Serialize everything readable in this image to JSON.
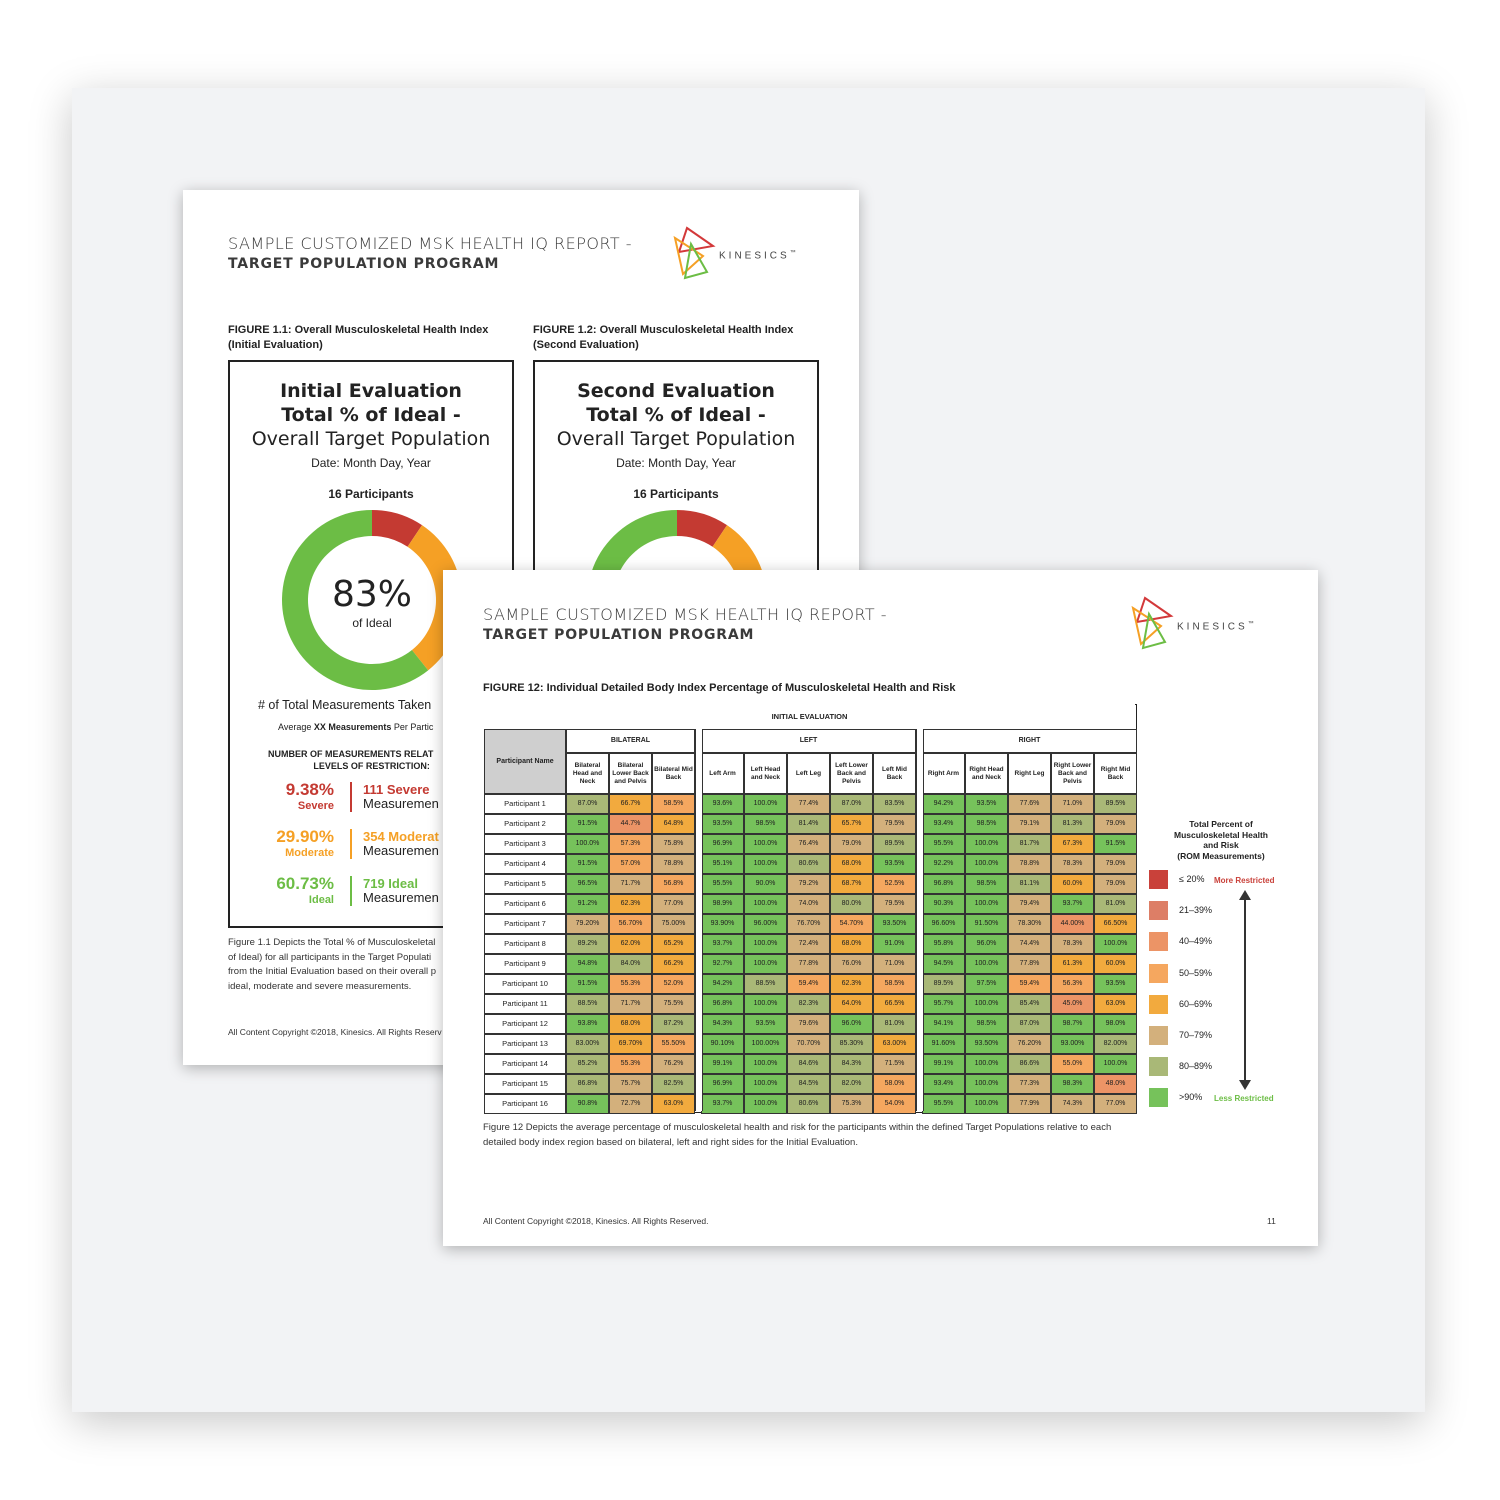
{
  "page1": {
    "header_line1": "SAMPLE CUSTOMIZED MSK HEALTH IQ REPORT -",
    "header_line2": "TARGET POPULATION PROGRAM",
    "logo_text": "KINESICS",
    "logo_tm": "™",
    "fig1_caption_1": "FIGURE 1.1: Overall Musculoskeletal Health Index",
    "fig1_caption_2": "(Initial Evaluation)",
    "fig2_caption_1": "FIGURE 1.2: Overall Musculoskeletal Health Index",
    "fig2_caption_2": "(Second Evaluation)",
    "box1": {
      "title1": "Initial Evaluation",
      "title2": "Total % of Ideal -",
      "title3": "Overall Target Population",
      "date": "Date: Month Day, Year",
      "participants": "16 Participants",
      "donut_value": "83%",
      "donut_label": "of Ideal",
      "donut_segments": {
        "severe": 9.38,
        "moderate": 29.9,
        "ideal": 60.73
      },
      "measurements_title": "# of Total Measurements Taken",
      "avg_prefix": "Average ",
      "avg_bold": "XX Measurements",
      "avg_suffix": " Per Partic",
      "levels_title_1": "NUMBER OF MEASUREMENTS RELAT",
      "levels_title_2": "LEVELS OF RESTRICTION:",
      "stats": [
        {
          "pct": "9.38%",
          "label": "Severe",
          "count": "111 Severe",
          "meas": "Measuremen",
          "color": "#c43a32"
        },
        {
          "pct": "29.90%",
          "label": "Moderate",
          "count": "354 Moderat",
          "meas": "Measuremen",
          "color": "#f5a025"
        },
        {
          "pct": "60.73%",
          "label": "Ideal",
          "count": "719 Ideal",
          "meas": "Measuremen",
          "color": "#6cbd45"
        }
      ]
    },
    "box2": {
      "title1": "Second Evaluation",
      "title2": "Total % of Ideal -",
      "title3": "Overall Target Population",
      "date": "Date: Month Day, Year",
      "participants": "16 Participants"
    },
    "note_1": "Figure 1.1 Depicts the Total % of Musculoskeletal",
    "note_2": "of Ideal) for all participants in the Target Populati",
    "note_3": "from the Initial Evaluation based on their overall p",
    "note_4": "ideal, moderate and severe measurements.",
    "copyright": "All Content Copyright ©2018, Kinesics. All Rights Reserv"
  },
  "page2": {
    "header_line1": "SAMPLE CUSTOMIZED MSK HEALTH IQ REPORT -",
    "header_line2": "TARGET POPULATION PROGRAM",
    "logo_text": "KINESICS",
    "logo_tm": "™",
    "figure_title": "FIGURE 12: Individual Detailed Body Index Percentage of Musculoskeletal Health and Risk",
    "table_title": "INITIAL EVALUATION",
    "participant_header": "Participant Name",
    "groups": [
      "BILATERAL",
      "LEFT",
      "RIGHT"
    ],
    "columns": [
      [
        "Bilateral Head and Neck",
        "Bilateral Lower Back and Pelvis",
        "Bilateral Mid Back"
      ],
      [
        "Left Arm",
        "Left Head and Neck",
        "Left Leg",
        "Left Lower Back and Pelvis",
        "Left Mid Back"
      ],
      [
        "Right Arm",
        "Right Head and Neck",
        "Right Leg",
        "Right Lower Back and Pelvis",
        "Right Mid Back"
      ]
    ],
    "rows": [
      {
        "name": "Participant 1",
        "values": [
          "87.0%",
          "66.7%",
          "58.5%",
          "93.6%",
          "100.0%",
          "77.4%",
          "87.0%",
          "83.5%",
          "94.2%",
          "93.5%",
          "77.6%",
          "71.0%",
          "89.5%"
        ]
      },
      {
        "name": "Participant 2",
        "values": [
          "91.5%",
          "44.7%",
          "64.8%",
          "93.5%",
          "98.5%",
          "81.4%",
          "65.7%",
          "79.5%",
          "93.4%",
          "98.5%",
          "79.1%",
          "81.3%",
          "79.0%"
        ]
      },
      {
        "name": "Participant 3",
        "values": [
          "100.0%",
          "57.3%",
          "75.8%",
          "96.9%",
          "100.0%",
          "76.4%",
          "79.0%",
          "89.5%",
          "95.5%",
          "100.0%",
          "81.7%",
          "67.3%",
          "91.5%"
        ]
      },
      {
        "name": "Participant 4",
        "values": [
          "91.5%",
          "57.0%",
          "78.8%",
          "95.1%",
          "100.0%",
          "80.6%",
          "68.0%",
          "93.5%",
          "92.2%",
          "100.0%",
          "78.8%",
          "78.3%",
          "79.0%"
        ]
      },
      {
        "name": "Participant 5",
        "values": [
          "96.5%",
          "71.7%",
          "56.8%",
          "95.5%",
          "90.0%",
          "79.2%",
          "68.7%",
          "52.5%",
          "96.8%",
          "98.5%",
          "81.1%",
          "60.0%",
          "79.0%"
        ]
      },
      {
        "name": "Participant 6",
        "values": [
          "91.2%",
          "62.3%",
          "77.0%",
          "98.9%",
          "100.0%",
          "74.0%",
          "80.0%",
          "79.5%",
          "90.3%",
          "100.0%",
          "79.4%",
          "93.7%",
          "81.0%"
        ]
      },
      {
        "name": "Participant 7",
        "values": [
          "79.20%",
          "56.70%",
          "75.00%",
          "93.90%",
          "96.00%",
          "76.70%",
          "54.70%",
          "93.50%",
          "96.60%",
          "91.50%",
          "78.30%",
          "44.00%",
          "66.50%"
        ]
      },
      {
        "name": "Participant 8",
        "values": [
          "89.2%",
          "62.0%",
          "65.2%",
          "93.7%",
          "100.0%",
          "72.4%",
          "68.0%",
          "91.0%",
          "95.8%",
          "96.0%",
          "74.4%",
          "78.3%",
          "100.0%"
        ]
      },
      {
        "name": "Participant 9",
        "values": [
          "94.8%",
          "84.0%",
          "66.2%",
          "92.7%",
          "100.0%",
          "77.8%",
          "76.0%",
          "71.0%",
          "94.5%",
          "100.0%",
          "77.8%",
          "61.3%",
          "60.0%"
        ]
      },
      {
        "name": "Participant 10",
        "values": [
          "91.5%",
          "55.3%",
          "52.0%",
          "94.2%",
          "88.5%",
          "59.4%",
          "62.3%",
          "58.5%",
          "89.5%",
          "97.5%",
          "59.4%",
          "56.3%",
          "93.5%"
        ]
      },
      {
        "name": "Participant 11",
        "values": [
          "88.5%",
          "71.7%",
          "75.5%",
          "96.8%",
          "100.0%",
          "82.3%",
          "64.0%",
          "66.5%",
          "95.7%",
          "100.0%",
          "85.4%",
          "45.0%",
          "63.0%"
        ]
      },
      {
        "name": "Participant 12",
        "values": [
          "93.8%",
          "68.0%",
          "87.2%",
          "94.3%",
          "93.5%",
          "79.6%",
          "96.0%",
          "81.0%",
          "94.1%",
          "98.5%",
          "87.0%",
          "98.7%",
          "98.0%"
        ]
      },
      {
        "name": "Participant 13",
        "values": [
          "83.00%",
          "69.70%",
          "55.50%",
          "90.10%",
          "100.00%",
          "70.70%",
          "85.30%",
          "63.00%",
          "91.60%",
          "93.50%",
          "76.20%",
          "93.00%",
          "82.00%"
        ]
      },
      {
        "name": "Participant 14",
        "values": [
          "85.2%",
          "55.3%",
          "76.2%",
          "99.1%",
          "100.0%",
          "84.6%",
          "84.3%",
          "71.5%",
          "99.1%",
          "100.0%",
          "86.6%",
          "55.0%",
          "100.0%"
        ]
      },
      {
        "name": "Participant 15",
        "values": [
          "86.8%",
          "75.7%",
          "82.5%",
          "96.9%",
          "100.0%",
          "84.5%",
          "82.0%",
          "58.0%",
          "93.4%",
          "100.0%",
          "77.3%",
          "98.3%",
          "48.0%"
        ]
      },
      {
        "name": "Participant 16",
        "values": [
          "90.8%",
          "72.7%",
          "63.0%",
          "93.7%",
          "100.0%",
          "80.6%",
          "75.3%",
          "54.0%",
          "95.5%",
          "100.0%",
          "77.9%",
          "74.3%",
          "77.0%"
        ]
      }
    ],
    "legend_title": [
      "Total Percent of",
      "Musculoskeletal Health",
      "and Risk",
      "(ROM Measurements)"
    ],
    "legend": [
      {
        "label": "≤ 20%",
        "color": "#c9413a"
      },
      {
        "label": "21–39%",
        "color": "#dd7e66"
      },
      {
        "label": "40–49%",
        "color": "#ec9466"
      },
      {
        "label": "50–59%",
        "color": "#f5a75f"
      },
      {
        "label": "60–69%",
        "color": "#f2aa3e"
      },
      {
        "label": "70–79%",
        "color": "#d3b07c"
      },
      {
        "label": "80–89%",
        "color": "#a9b877"
      },
      {
        "label": ">90%",
        "color": "#76c25b"
      }
    ],
    "legend_more": "More Restricted",
    "legend_less": "Less Restricted",
    "caption_1": "Figure 12 Depicts the average percentage of musculoskeletal health and risk for the participants within the defined Target Populations relative to each",
    "caption_2": "detailed body index region based on bilateral, left and right sides for the Initial Evaluation.",
    "copyright": "All Content Copyright ©2018, Kinesics. All Rights Reserved.",
    "page_number": "11"
  }
}
